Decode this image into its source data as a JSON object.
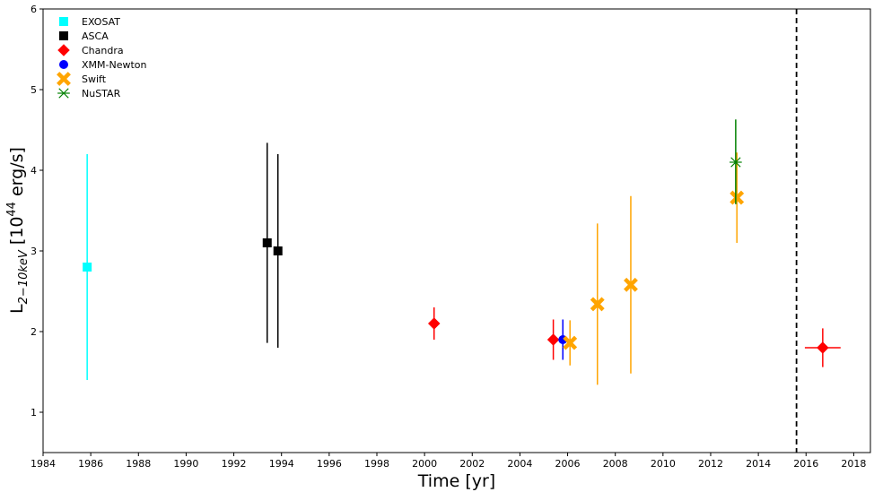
{
  "chart_data": {
    "type": "scatter",
    "title": "",
    "xlabel": "Time [yr]",
    "ylabel_main": "L",
    "ylabel_sub": "2−10keV",
    "ylabel_rest_a": " [10",
    "ylabel_sup": "44",
    "ylabel_rest_b": " erg/s]",
    "xlim": [
      1984,
      2018.7
    ],
    "ylim": [
      0.5,
      6
    ],
    "xticks": [
      1984,
      1986,
      1988,
      1990,
      1992,
      1994,
      1996,
      1998,
      2000,
      2002,
      2004,
      2006,
      2008,
      2010,
      2012,
      2014,
      2016,
      2018
    ],
    "yticks": [
      1,
      2,
      3,
      4,
      5,
      6
    ],
    "legend_position": "top-left",
    "grid": false,
    "vertical_line": {
      "x": 2015.6,
      "style": "dashed",
      "color": "#000000"
    },
    "series": [
      {
        "name": "EXOSAT",
        "marker": "square",
        "color": "#00ffff",
        "points": [
          {
            "x": 1985.85,
            "y": 2.8,
            "ylo": 1.4,
            "yhi": 4.2
          }
        ]
      },
      {
        "name": "ASCA",
        "marker": "square",
        "color": "#000000",
        "points": [
          {
            "x": 1993.4,
            "y": 3.1,
            "ylo": 1.86,
            "yhi": 4.34
          },
          {
            "x": 1993.85,
            "y": 3.0,
            "ylo": 1.8,
            "yhi": 4.2
          }
        ]
      },
      {
        "name": "Chandra",
        "marker": "diamond",
        "color": "#ff0000",
        "points": [
          {
            "x": 2000.4,
            "y": 2.1,
            "ylo": 1.9,
            "yhi": 2.3
          },
          {
            "x": 2005.4,
            "y": 1.9,
            "ylo": 1.65,
            "yhi": 2.15
          },
          {
            "x": 2016.7,
            "y": 1.8,
            "ylo": 1.56,
            "yhi": 2.04,
            "xlo": 2015.95,
            "xhi": 2017.45
          }
        ]
      },
      {
        "name": "XMM-Newton",
        "marker": "circle",
        "color": "#0000ff",
        "points": [
          {
            "x": 2005.8,
            "y": 1.9,
            "ylo": 1.65,
            "yhi": 2.15
          }
        ]
      },
      {
        "name": "Swift",
        "marker": "x-filled",
        "color": "#ffa500",
        "points": [
          {
            "x": 2006.1,
            "y": 1.86,
            "ylo": 1.58,
            "yhi": 2.14
          },
          {
            "x": 2007.25,
            "y": 2.34,
            "ylo": 1.34,
            "yhi": 3.34
          },
          {
            "x": 2008.65,
            "y": 2.58,
            "ylo": 1.48,
            "yhi": 3.68
          },
          {
            "x": 2013.1,
            "y": 3.66,
            "ylo": 3.1,
            "yhi": 4.22
          }
        ]
      },
      {
        "name": "NuSTAR",
        "marker": "asterisk",
        "color": "#008000",
        "points": [
          {
            "x": 2013.05,
            "y": 4.1,
            "ylo": 3.58,
            "yhi": 4.63
          }
        ]
      }
    ]
  }
}
